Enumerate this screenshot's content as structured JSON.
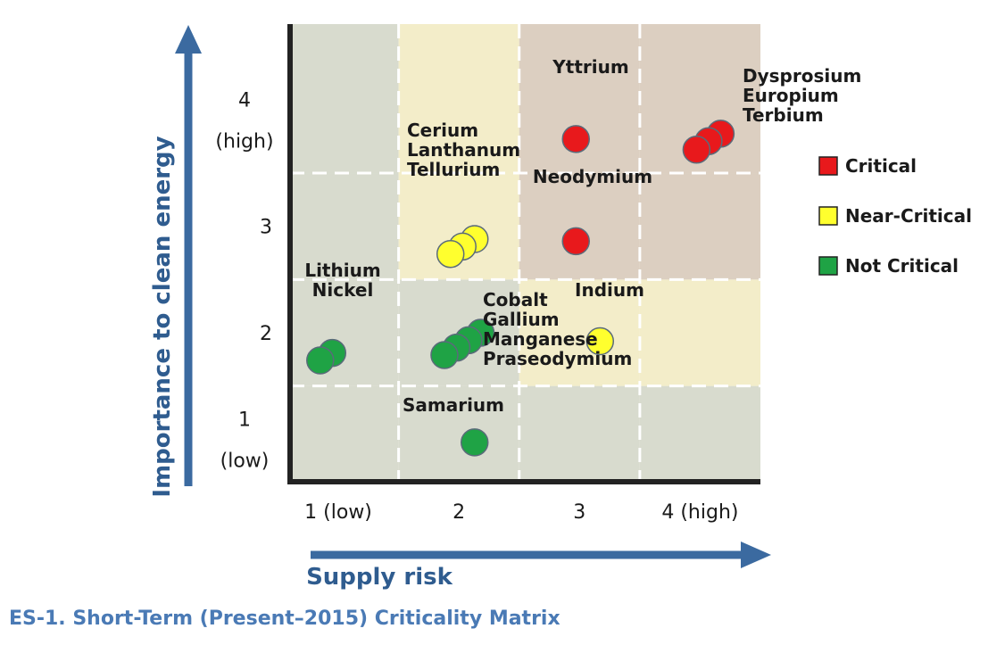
{
  "chart_data": {
    "type": "scatter",
    "caption": "ES-1. Short-Term (Present–2015) Criticality Matrix",
    "xlabel": "Supply risk",
    "ylabel": "Importance to clean energy",
    "x_ticks": [
      "1 (low)",
      "2",
      "3",
      "4 (high)"
    ],
    "y_ticks": [
      {
        "value": 4,
        "lines": [
          "4",
          "(high)"
        ]
      },
      {
        "value": 3,
        "lines": [
          "3"
        ]
      },
      {
        "value": 2,
        "lines": [
          "2"
        ]
      },
      {
        "value": 1,
        "lines": [
          "1",
          "(low)"
        ]
      }
    ],
    "xlim": [
      0.6,
      4.5
    ],
    "ylim": [
      0.6,
      4.9
    ],
    "categories": {
      "critical": {
        "label": "Critical",
        "color": "#e8191c"
      },
      "near_critical": {
        "label": "Near-Critical",
        "color": "#ffff2e"
      },
      "not_critical": {
        "label": "Not Critical",
        "color": "#1fa345"
      }
    },
    "points": [
      {
        "element": "Yttrium",
        "x": 2.97,
        "y": 3.82,
        "category": "critical"
      },
      {
        "element": "Neodymium",
        "x": 2.97,
        "y": 2.86,
        "category": "critical"
      },
      {
        "element": "Dysprosium",
        "x": 4.17,
        "y": 3.87,
        "category": "critical"
      },
      {
        "element": "Europium",
        "x": 4.07,
        "y": 3.8,
        "category": "critical"
      },
      {
        "element": "Terbium",
        "x": 3.97,
        "y": 3.72,
        "category": "critical"
      },
      {
        "element": "Cerium",
        "x": 2.13,
        "y": 2.88,
        "category": "near_critical"
      },
      {
        "element": "Lanthanum",
        "x": 2.03,
        "y": 2.81,
        "category": "near_critical"
      },
      {
        "element": "Tellurium",
        "x": 1.93,
        "y": 2.74,
        "category": "near_critical"
      },
      {
        "element": "Indium",
        "x": 3.17,
        "y": 1.92,
        "category": "near_critical"
      },
      {
        "element": "Lithium",
        "x": 0.95,
        "y": 1.81,
        "category": "not_critical"
      },
      {
        "element": "Nickel",
        "x": 0.85,
        "y": 1.74,
        "category": "not_critical"
      },
      {
        "element": "Cobalt",
        "x": 2.18,
        "y": 2.0,
        "category": "not_critical"
      },
      {
        "element": "Gallium",
        "x": 2.08,
        "y": 1.93,
        "category": "not_critical"
      },
      {
        "element": "Manganese",
        "x": 1.98,
        "y": 1.86,
        "category": "not_critical"
      },
      {
        "element": "Praseodymium",
        "x": 1.88,
        "y": 1.79,
        "category": "not_critical"
      },
      {
        "element": "Samarium",
        "x": 2.13,
        "y": 0.97,
        "category": "not_critical"
      }
    ],
    "point_labels": [
      {
        "lines": [
          "Yttrium"
        ]
      },
      {
        "lines": [
          "Dysprosium",
          "Europium",
          "Terbium"
        ]
      },
      {
        "lines": [
          "Cerium",
          "Lanthanum",
          "Tellurium"
        ]
      },
      {
        "lines": [
          "Neodymium"
        ]
      },
      {
        "lines": [
          "Lithium",
          "Nickel"
        ]
      },
      {
        "lines": [
          "Cobalt",
          "Gallium",
          "Manganese",
          "Praseodymium"
        ]
      },
      {
        "lines": [
          "Indium"
        ]
      },
      {
        "lines": [
          "Samarium"
        ]
      }
    ],
    "zone_colors": {
      "green": "#d8dbce",
      "yellow": "#f3edc9",
      "brown": "#dccfc1"
    },
    "grid": "dashed-white",
    "legend": "right"
  }
}
